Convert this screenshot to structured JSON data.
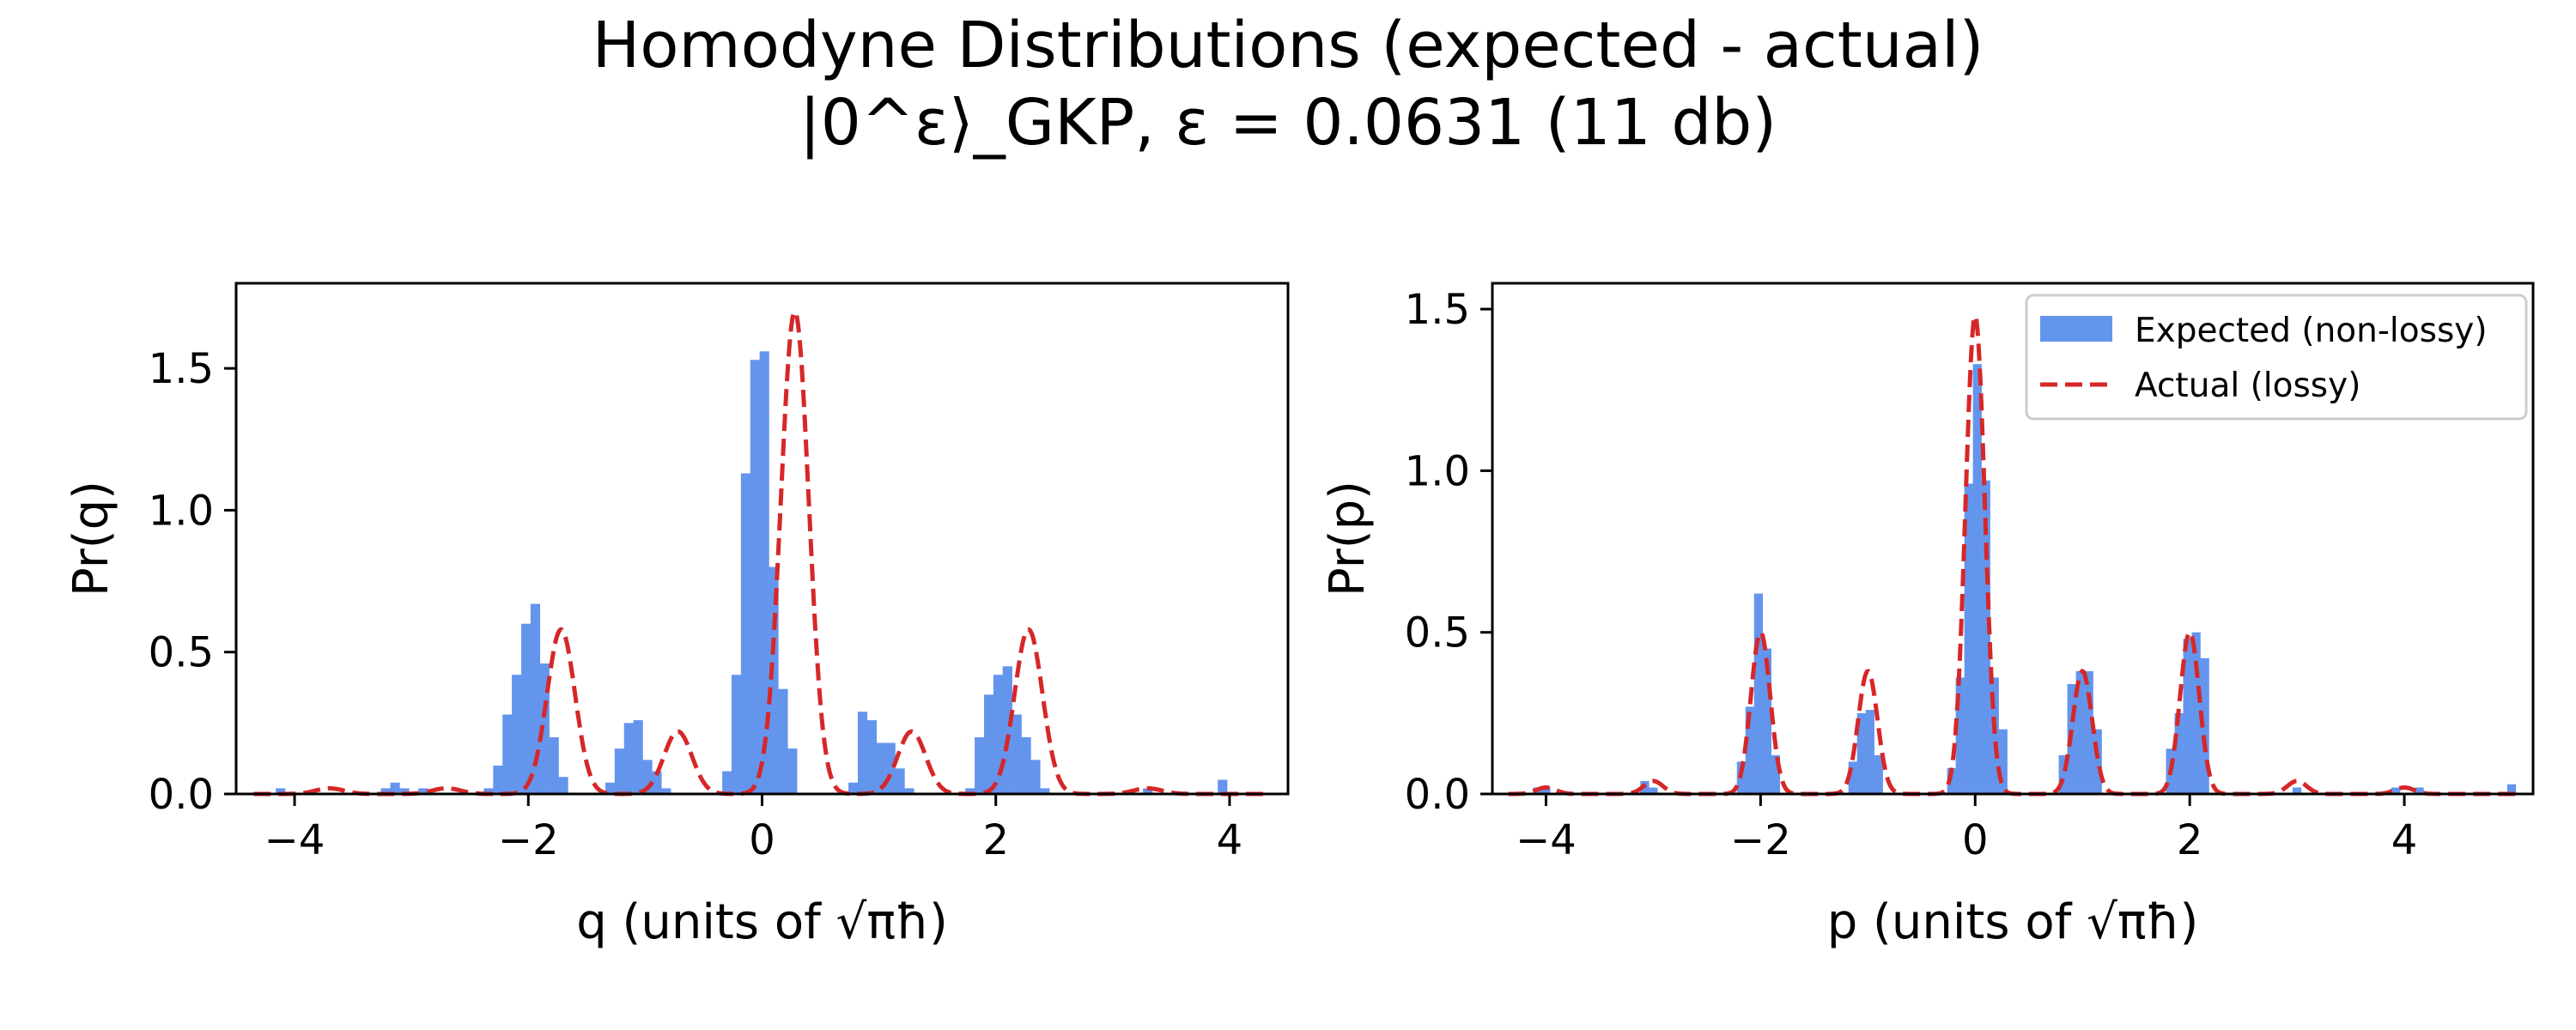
{
  "figure": {
    "title_line1": "Homodyne Distributions (expected - actual)",
    "title_line2": "|0^ε⟩_GKP, ε = 0.0631 (11 db)",
    "colors": {
      "expected": "#6495ED",
      "actual": "#D62728"
    }
  },
  "chart_data": [
    {
      "type": "bar",
      "panel": "left",
      "xlabel": "q (units of √πħ)",
      "ylabel": "Pr(q)",
      "xlim": [
        -4.5,
        4.5
      ],
      "ylim": [
        0,
        1.8
      ],
      "xticks": [
        -4,
        -2,
        0,
        2,
        4
      ],
      "yticks": [
        0.0,
        0.5,
        1.0,
        1.5
      ],
      "xtick_labels": [
        "−4",
        "−2",
        "0",
        "2",
        "4"
      ],
      "ytick_labels": [
        "0.0",
        "0.5",
        "1.0",
        "1.5"
      ],
      "grid": false,
      "series": [
        {
          "name": "Expected (non-lossy)",
          "kind": "histogram",
          "bin_width": 0.082,
          "bins": [
            [
              -4.12,
              0.02
            ],
            [
              -3.22,
              0.02
            ],
            [
              -3.14,
              0.04
            ],
            [
              -3.06,
              0.02
            ],
            [
              -2.9,
              0.02
            ],
            [
              -2.34,
              0.02
            ],
            [
              -2.26,
              0.1
            ],
            [
              -2.18,
              0.28
            ],
            [
              -2.1,
              0.42
            ],
            [
              -2.02,
              0.6
            ],
            [
              -1.94,
              0.67
            ],
            [
              -1.86,
              0.46
            ],
            [
              -1.78,
              0.2
            ],
            [
              -1.7,
              0.06
            ],
            [
              -1.3,
              0.04
            ],
            [
              -1.22,
              0.16
            ],
            [
              -1.14,
              0.25
            ],
            [
              -1.06,
              0.26
            ],
            [
              -0.98,
              0.12
            ],
            [
              -0.9,
              0.08
            ],
            [
              -0.82,
              0.02
            ],
            [
              -0.3,
              0.08
            ],
            [
              -0.22,
              0.42
            ],
            [
              -0.14,
              1.13
            ],
            [
              -0.06,
              1.53
            ],
            [
              0.02,
              1.56
            ],
            [
              0.1,
              0.8
            ],
            [
              0.18,
              0.37
            ],
            [
              0.26,
              0.16
            ],
            [
              0.78,
              0.04
            ],
            [
              0.86,
              0.29
            ],
            [
              0.94,
              0.26
            ],
            [
              1.02,
              0.18
            ],
            [
              1.1,
              0.18
            ],
            [
              1.18,
              0.09
            ],
            [
              1.26,
              0.02
            ],
            [
              1.78,
              0.02
            ],
            [
              1.86,
              0.2
            ],
            [
              1.94,
              0.35
            ],
            [
              2.02,
              0.42
            ],
            [
              2.1,
              0.45
            ],
            [
              2.18,
              0.28
            ],
            [
              2.26,
              0.2
            ],
            [
              2.34,
              0.12
            ],
            [
              2.42,
              0.02
            ],
            [
              3.3,
              0.02
            ],
            [
              3.94,
              0.05
            ]
          ]
        },
        {
          "name": "Actual (lossy)",
          "kind": "dashed-line",
          "peaks": [
            {
              "center": -3.7,
              "height": 0.02,
              "sigma": 0.12
            },
            {
              "center": -2.7,
              "height": 0.02,
              "sigma": 0.12
            },
            {
              "center": -1.72,
              "height": 0.58,
              "sigma": 0.12
            },
            {
              "center": -0.72,
              "height": 0.22,
              "sigma": 0.12
            },
            {
              "center": 0.28,
              "height": 1.7,
              "sigma": 0.12
            },
            {
              "center": 1.28,
              "height": 0.22,
              "sigma": 0.12
            },
            {
              "center": 2.28,
              "height": 0.58,
              "sigma": 0.12
            },
            {
              "center": 3.3,
              "height": 0.02,
              "sigma": 0.12
            }
          ]
        }
      ]
    },
    {
      "type": "bar",
      "panel": "right",
      "xlabel": "p (units of √πħ)",
      "ylabel": "Pr(p)",
      "xlim": [
        -4.5,
        5.2
      ],
      "ylim": [
        0,
        1.58
      ],
      "xticks": [
        -4,
        -2,
        0,
        2,
        4
      ],
      "yticks": [
        0.0,
        0.5,
        1.0,
        1.5
      ],
      "xtick_labels": [
        "−4",
        "−2",
        "0",
        "2",
        "4"
      ],
      "ytick_labels": [
        "0.0",
        "0.5",
        "1.0",
        "1.5"
      ],
      "grid": false,
      "legend": {
        "position": "upper right",
        "entries": [
          "Expected (non-lossy)",
          "Actual (lossy)"
        ]
      },
      "series": [
        {
          "name": "Expected (non-lossy)",
          "kind": "histogram",
          "bin_width": 0.082,
          "bins": [
            [
              -4.08,
              0.02
            ],
            [
              -4.0,
              0.02
            ],
            [
              -3.08,
              0.04
            ],
            [
              -3.0,
              0.02
            ],
            [
              -2.18,
              0.1
            ],
            [
              -2.1,
              0.27
            ],
            [
              -2.02,
              0.62
            ],
            [
              -1.94,
              0.45
            ],
            [
              -1.86,
              0.12
            ],
            [
              -1.14,
              0.1
            ],
            [
              -1.06,
              0.25
            ],
            [
              -0.98,
              0.26
            ],
            [
              -0.9,
              0.12
            ],
            [
              -0.22,
              0.08
            ],
            [
              -0.14,
              0.36
            ],
            [
              -0.06,
              0.96
            ],
            [
              0.02,
              1.33
            ],
            [
              0.1,
              0.97
            ],
            [
              0.18,
              0.36
            ],
            [
              0.26,
              0.2
            ],
            [
              0.82,
              0.12
            ],
            [
              0.9,
              0.34
            ],
            [
              0.98,
              0.38
            ],
            [
              1.06,
              0.38
            ],
            [
              1.14,
              0.2
            ],
            [
              1.82,
              0.14
            ],
            [
              1.9,
              0.25
            ],
            [
              1.98,
              0.48
            ],
            [
              2.06,
              0.5
            ],
            [
              2.14,
              0.42
            ],
            [
              3.0,
              0.02
            ],
            [
              3.92,
              0.02
            ],
            [
              4.14,
              0.02
            ],
            [
              5.0,
              0.03
            ]
          ]
        },
        {
          "name": "Actual (lossy)",
          "kind": "dashed-line",
          "peaks": [
            {
              "center": -4,
              "height": 0.02,
              "sigma": 0.09
            },
            {
              "center": -3,
              "height": 0.04,
              "sigma": 0.09
            },
            {
              "center": -2,
              "height": 0.5,
              "sigma": 0.09
            },
            {
              "center": -1,
              "height": 0.38,
              "sigma": 0.09
            },
            {
              "center": 0,
              "height": 1.48,
              "sigma": 0.09
            },
            {
              "center": 1,
              "height": 0.38,
              "sigma": 0.09
            },
            {
              "center": 2,
              "height": 0.5,
              "sigma": 0.09
            },
            {
              "center": 3,
              "height": 0.04,
              "sigma": 0.09
            },
            {
              "center": 4,
              "height": 0.02,
              "sigma": 0.09
            }
          ]
        }
      ]
    }
  ]
}
